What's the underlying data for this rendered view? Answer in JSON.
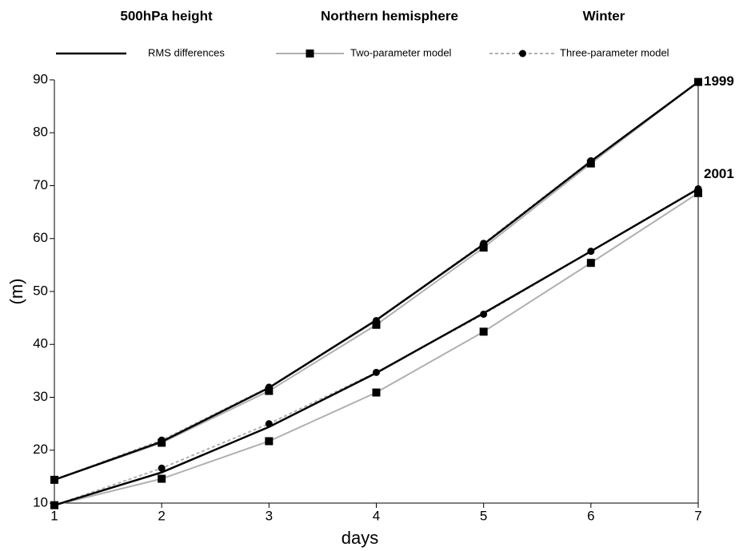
{
  "chart_data": {
    "type": "line",
    "titles": [
      "500hPa height",
      "Northern hemisphere",
      "Winter"
    ],
    "x_label": "days",
    "y_label": "(m)",
    "x": [
      1,
      2,
      3,
      4,
      5,
      6,
      7
    ],
    "xlim": [
      1,
      7
    ],
    "xticks": [
      1,
      2,
      3,
      4,
      5,
      6,
      7
    ],
    "ylim": [
      10,
      90
    ],
    "yticks": [
      10,
      20,
      30,
      40,
      50,
      60,
      70,
      80,
      90
    ],
    "legend": [
      {
        "name": "RMS differences",
        "color": "#000000",
        "marker": "none",
        "dash": "solid"
      },
      {
        "name": "Two-parameter model",
        "color": "#b0b0b0",
        "marker": "square",
        "dash": "solid"
      },
      {
        "name": "Three-parameter model",
        "color": "#b0b0b0",
        "marker": "circle",
        "dash": "dashed"
      }
    ],
    "groups": [
      {
        "label": "1999",
        "series": [
          {
            "values": [
              14.4,
              21.6,
              31.8,
              44.6,
              58.9,
              74.6,
              89.6
            ]
          },
          {
            "values": [
              14.4,
              21.4,
              31.2,
              43.7,
              58.3,
              74.2,
              89.6
            ]
          },
          {
            "values": [
              14.4,
              21.9,
              31.9,
              44.5,
              59.1,
              74.7,
              89.6
            ]
          }
        ]
      },
      {
        "label": "2001",
        "series": [
          {
            "values": [
              9.6,
              15.8,
              24.4,
              34.6,
              45.9,
              57.6,
              69.4
            ]
          },
          {
            "values": [
              9.6,
              14.6,
              21.7,
              30.9,
              42.4,
              55.4,
              68.6
            ]
          },
          {
            "values": [
              9.6,
              16.6,
              25.0,
              34.7,
              45.7,
              57.6,
              69.4
            ]
          }
        ]
      }
    ]
  }
}
